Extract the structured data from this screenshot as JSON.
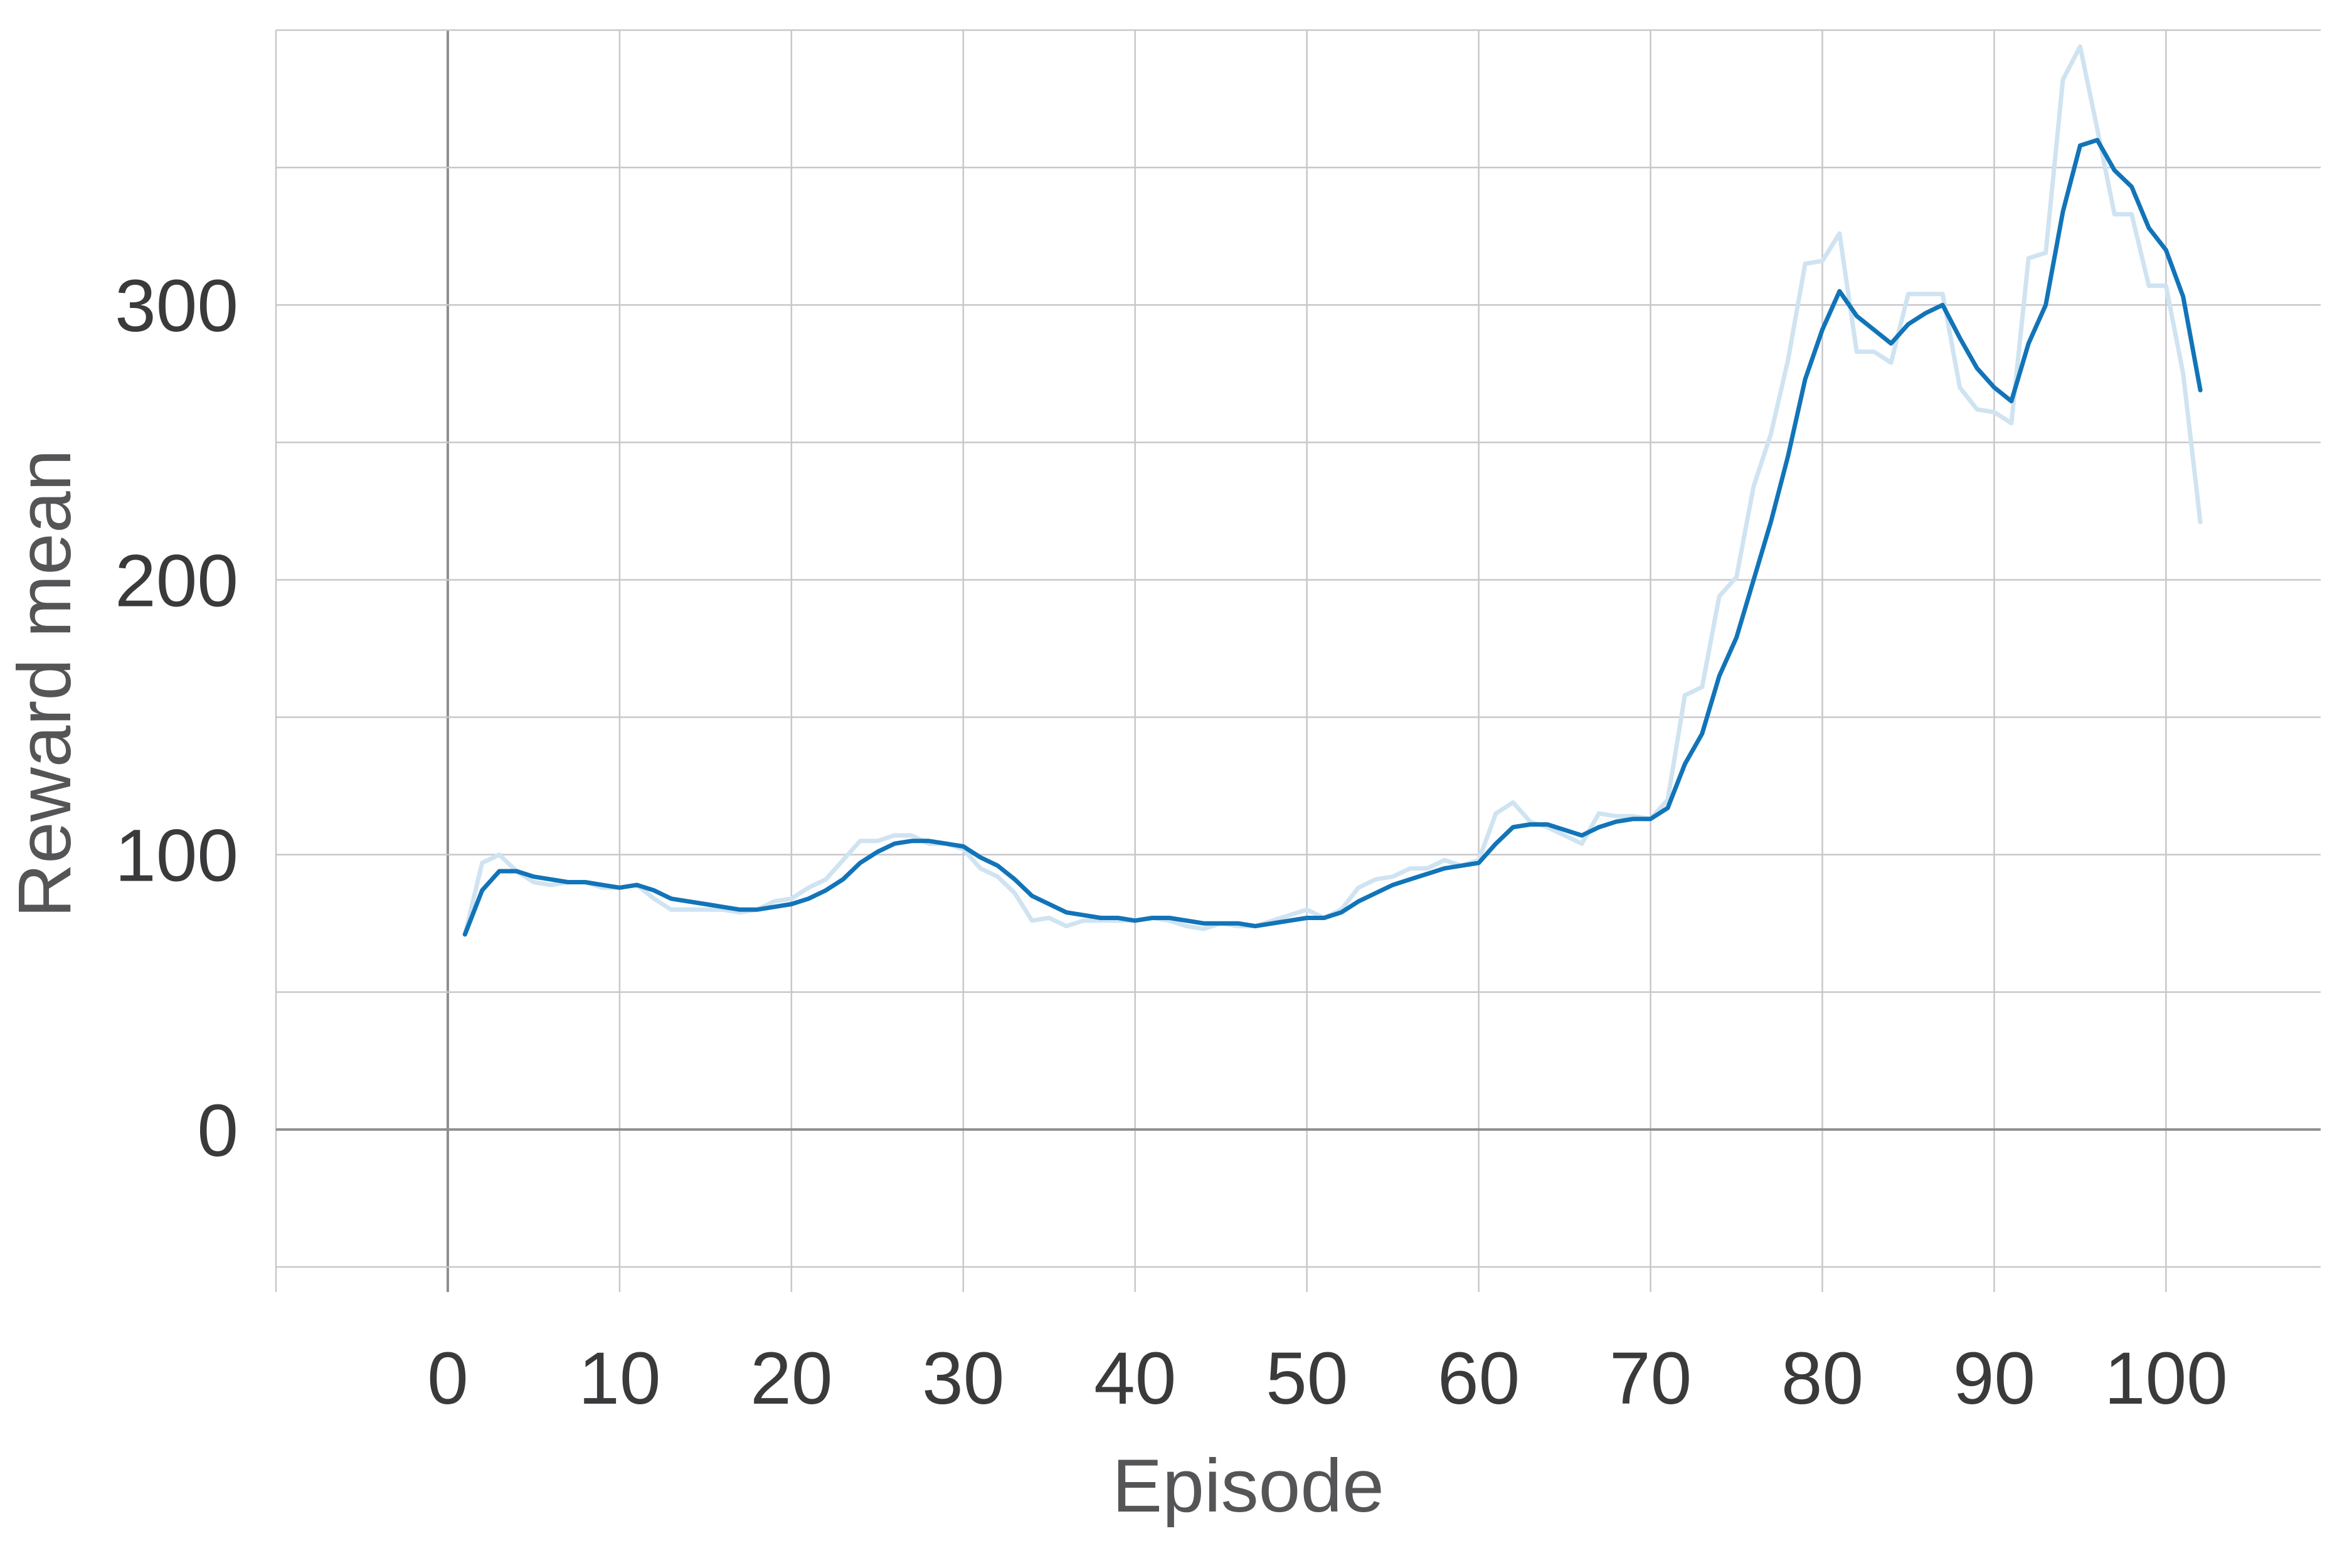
{
  "chart_data": {
    "type": "line",
    "xlabel": "Episode",
    "ylabel": "Reward mean",
    "xlim": [
      -10,
      109
    ],
    "ylim": [
      -50,
      400
    ],
    "x_ticks": [
      0,
      10,
      20,
      30,
      40,
      50,
      60,
      70,
      80,
      90,
      100
    ],
    "y_ticks": [
      0,
      100,
      200,
      300
    ],
    "x_ticks_labeled": [
      "0",
      "10",
      "20",
      "30",
      "40",
      "50",
      "60",
      "70",
      "80",
      "90",
      "100"
    ],
    "y_ticks_labeled": [
      "0",
      "100",
      "200",
      "300"
    ],
    "grid": true,
    "x_grid": [
      -10,
      0,
      10,
      20,
      30,
      40,
      50,
      60,
      70,
      80,
      90,
      100
    ],
    "y_grid": [
      -50,
      0,
      50,
      100,
      150,
      200,
      250,
      300,
      350,
      400
    ],
    "series": [
      {
        "color": "#cfe3f1",
        "x": [
          1,
          2,
          3,
          4,
          5,
          6,
          7,
          8,
          9,
          10,
          11,
          12,
          13,
          14,
          15,
          16,
          17,
          18,
          19,
          20,
          21,
          22,
          23,
          24,
          25,
          26,
          27,
          28,
          29,
          30,
          31,
          32,
          33,
          34,
          35,
          36,
          37,
          38,
          39,
          40,
          41,
          42,
          43,
          44,
          45,
          46,
          47,
          48,
          49,
          50,
          51,
          52,
          53,
          54,
          55,
          56,
          57,
          58,
          59,
          60,
          61,
          62,
          63,
          64,
          65,
          66,
          67,
          68,
          69,
          70,
          71,
          72,
          73,
          74,
          75,
          76,
          77,
          78,
          79,
          80,
          81,
          82,
          83,
          84,
          85,
          86,
          87,
          88,
          89,
          90,
          91,
          92,
          93,
          94,
          95,
          96,
          97,
          98,
          99,
          100,
          101,
          102
        ],
        "values": [
          71,
          97,
          100,
          94,
          90,
          89,
          90,
          90,
          88,
          88,
          89,
          84,
          80,
          80,
          80,
          80,
          79,
          80,
          83,
          84,
          88,
          91,
          98,
          105,
          105,
          107,
          107,
          104,
          104,
          102,
          95,
          92,
          86,
          76,
          77,
          74,
          76,
          76,
          76,
          76,
          77,
          76,
          74,
          73,
          75,
          74,
          74,
          76,
          78,
          80,
          77,
          80,
          88,
          91,
          92,
          95,
          95,
          98,
          96,
          98,
          115,
          119,
          112,
          110,
          107,
          104,
          115,
          114,
          114,
          113,
          120,
          158,
          161,
          194,
          201,
          234,
          253,
          280,
          315,
          316,
          326,
          283,
          283,
          279,
          304,
          304,
          304,
          270,
          262,
          261,
          257,
          317,
          319,
          382,
          394,
          364,
          333,
          333,
          307,
          307,
          275,
          221
        ]
      },
      {
        "color": "#1274b8",
        "x": [
          1,
          2,
          3,
          4,
          5,
          6,
          7,
          8,
          9,
          10,
          11,
          12,
          13,
          14,
          15,
          16,
          17,
          18,
          19,
          20,
          21,
          22,
          23,
          24,
          25,
          26,
          27,
          28,
          29,
          30,
          31,
          32,
          33,
          34,
          35,
          36,
          37,
          38,
          39,
          40,
          41,
          42,
          43,
          44,
          45,
          46,
          47,
          48,
          49,
          50,
          51,
          52,
          53,
          54,
          55,
          56,
          57,
          58,
          59,
          60,
          61,
          62,
          63,
          64,
          65,
          66,
          67,
          68,
          69,
          70,
          71,
          72,
          73,
          74,
          75,
          76,
          77,
          78,
          79,
          80,
          81,
          82,
          83,
          84,
          85,
          86,
          87,
          88,
          89,
          90,
          91,
          92,
          93,
          94,
          95,
          96,
          97,
          98,
          99,
          100,
          101,
          102
        ],
        "values": [
          71,
          87,
          94,
          94,
          92,
          91,
          90,
          90,
          89,
          88,
          89,
          87,
          84,
          83,
          82,
          81,
          80,
          80,
          81,
          82,
          84,
          87,
          91,
          97,
          101,
          104,
          105,
          105,
          104,
          103,
          99,
          96,
          91,
          85,
          82,
          79,
          78,
          77,
          77,
          76,
          77,
          77,
          76,
          75,
          75,
          75,
          74,
          75,
          76,
          77,
          77,
          79,
          83,
          86,
          89,
          91,
          93,
          95,
          96,
          97,
          104,
          110,
          111,
          111,
          109,
          107,
          110,
          112,
          113,
          113,
          117,
          133,
          144,
          165,
          179,
          200,
          221,
          245,
          273,
          291,
          305,
          296,
          291,
          286,
          293,
          297,
          300,
          288,
          277,
          270,
          265,
          286,
          300,
          334,
          358,
          360,
          349,
          343,
          328,
          320,
          303,
          269
        ]
      }
    ]
  }
}
